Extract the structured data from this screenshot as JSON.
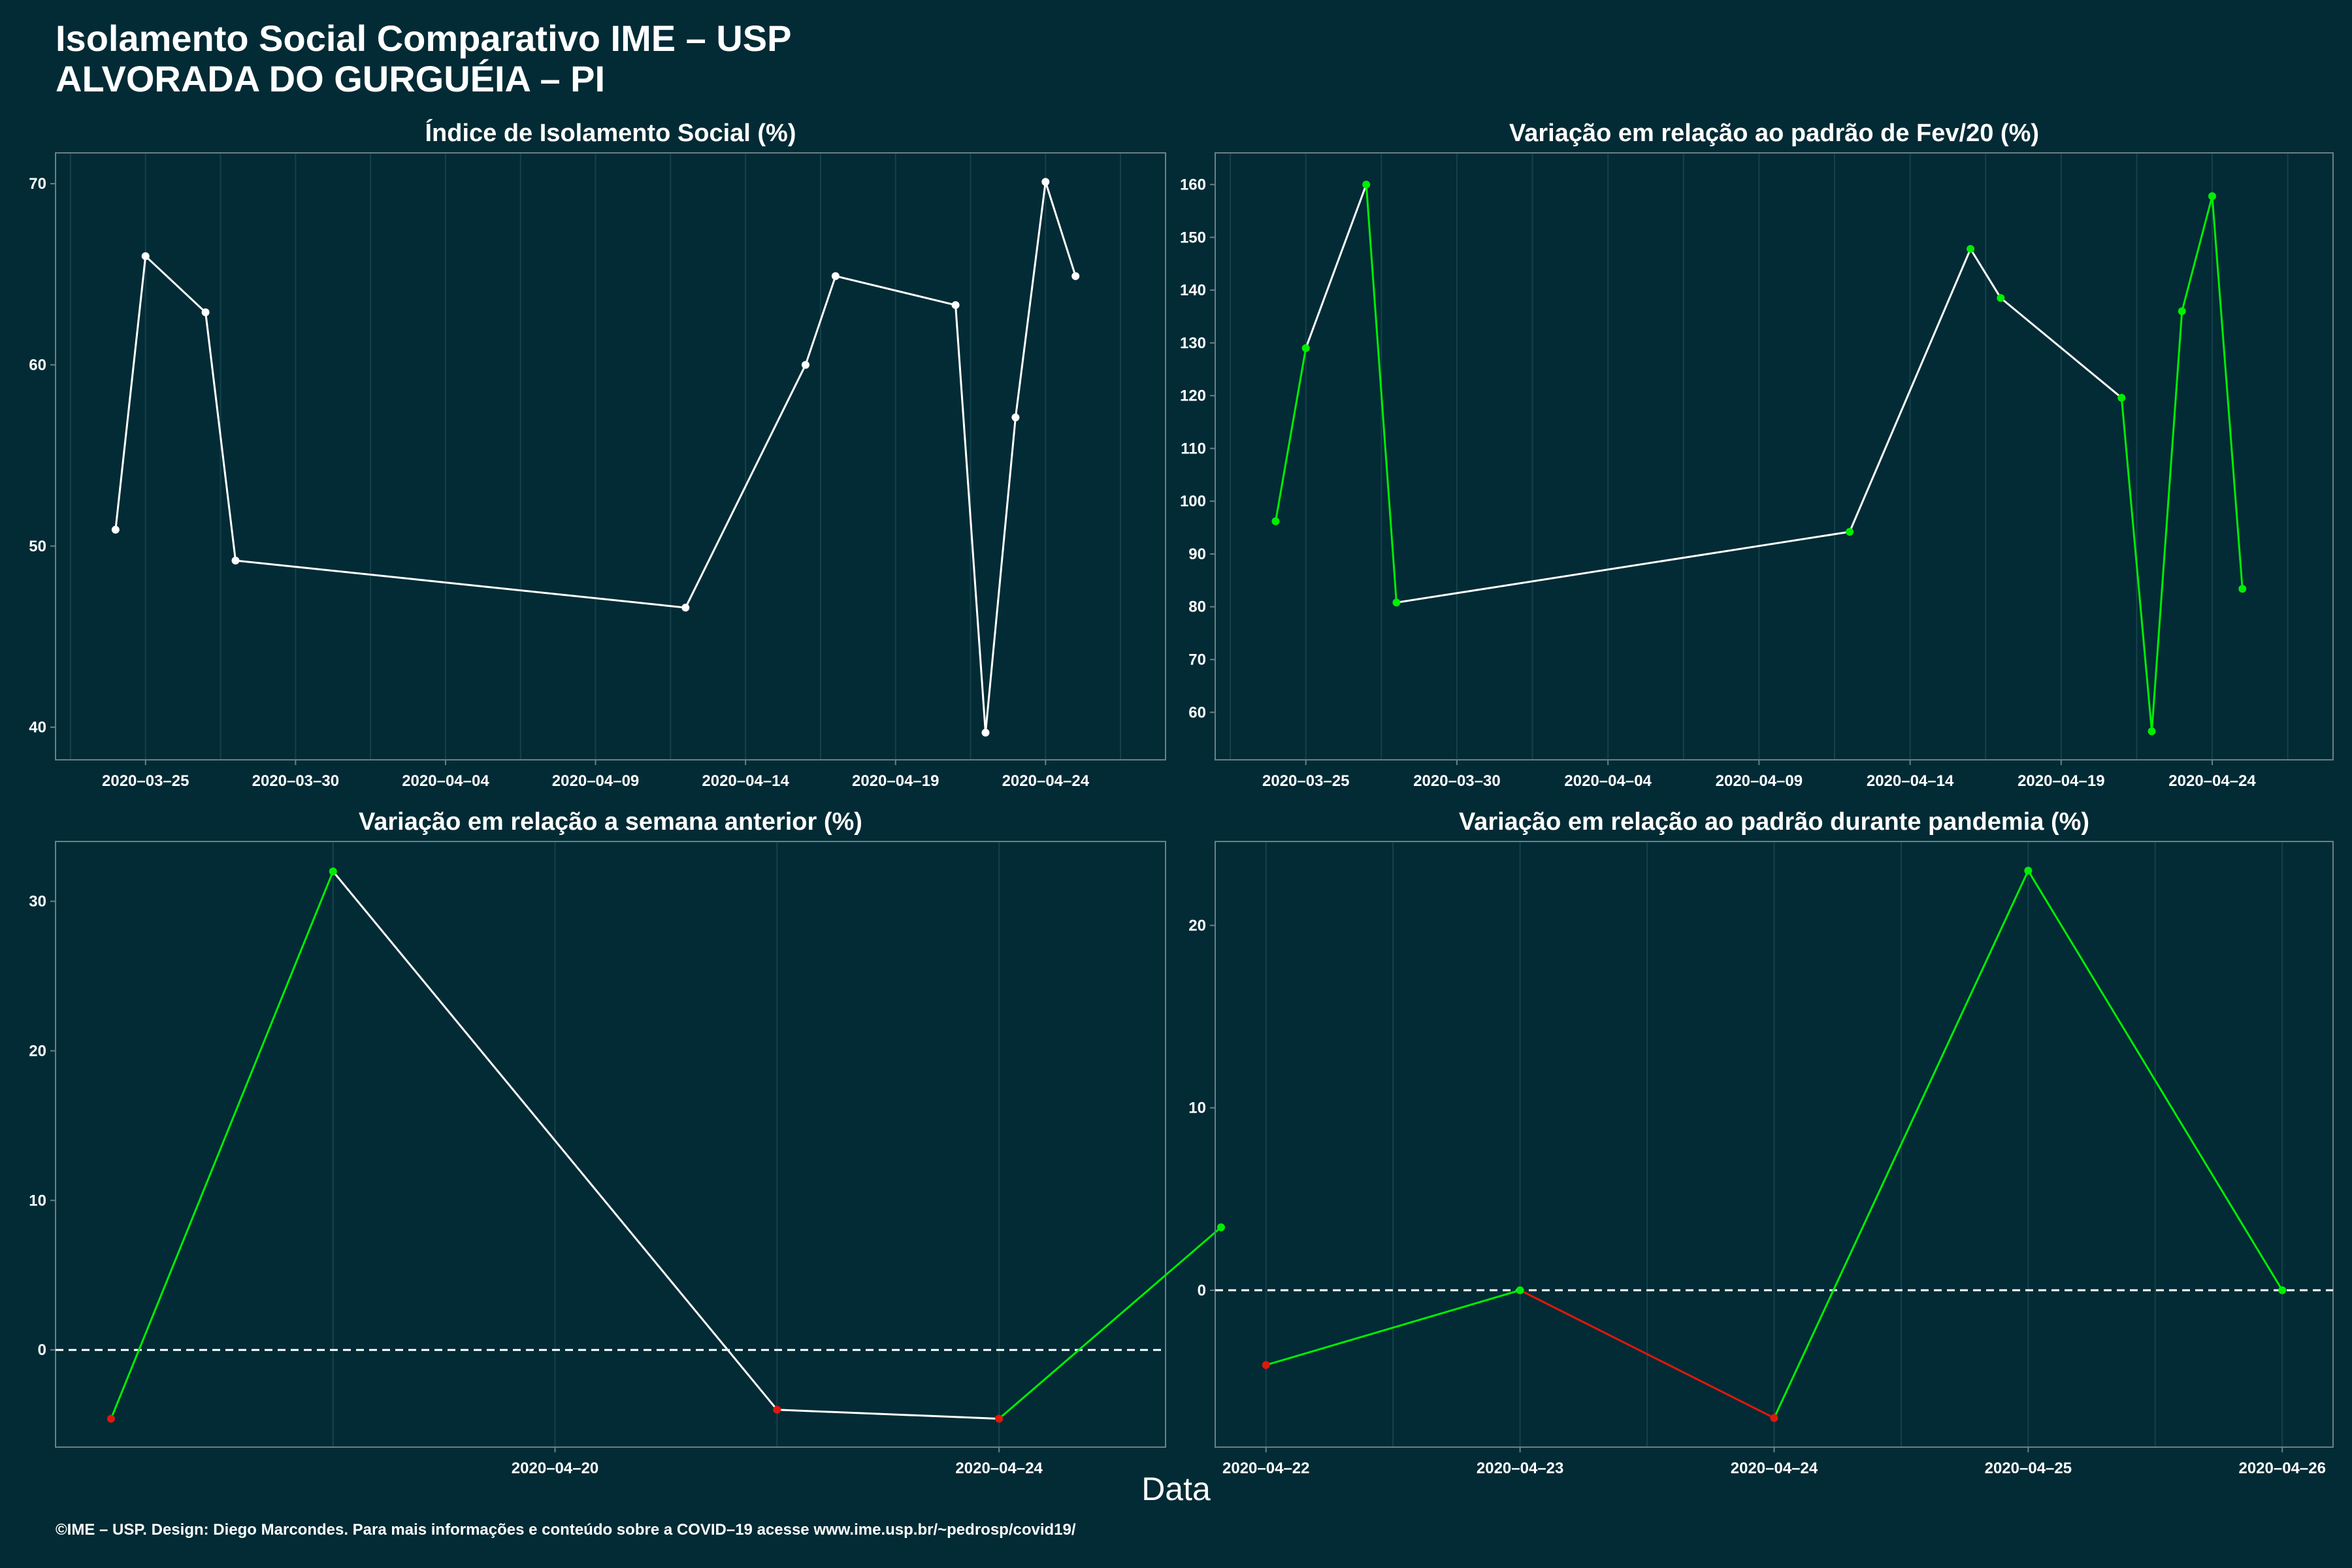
{
  "title_line1": "Isolamento Social Comparativo IME – USP",
  "title_line2": "ALVORADA DO GURGUÉIA – PI",
  "xlabel": "Data",
  "footer": "©IME – USP. Design: Diego Marcondes. Para mais informações e conteúdo sobre a COVID–19 acesse www.ime.usp.br/~pedrosp/covid19/",
  "colors": {
    "background": "#022b35",
    "line_default": "#ffffff",
    "increase": "#00ee00",
    "decrease": "#e0180c",
    "grid": "#16414b",
    "border": "#6a8088"
  },
  "chart_data": [
    {
      "type": "line",
      "title": "Índice de Isolamento Social (%)",
      "ylim": [
        38.2,
        71.7
      ],
      "yticks": [
        40,
        50,
        60,
        70
      ],
      "xlim": [
        "2020-03-22",
        "2020-04-28"
      ],
      "xticks": [
        "2020-03-25",
        "2020-03-30",
        "2020-04-04",
        "2020-04-09",
        "2020-04-14",
        "2020-04-19",
        "2020-04-24"
      ],
      "x": [
        "2020-03-24",
        "2020-03-25",
        "2020-03-27",
        "2020-03-28",
        "2020-04-12",
        "2020-04-16",
        "2020-04-17",
        "2020-04-21",
        "2020-04-22",
        "2020-04-23",
        "2020-04-24",
        "2020-04-25"
      ],
      "values": [
        50.9,
        66.0,
        62.9,
        49.2,
        46.6,
        60.0,
        64.9,
        63.3,
        39.7,
        57.1,
        70.1,
        64.9
      ],
      "colors": [
        "white",
        "white",
        "white",
        "white",
        "white",
        "white",
        "white",
        "white",
        "white",
        "white",
        "white",
        "white"
      ],
      "segments": [
        "white",
        "white",
        "white",
        "white",
        "white",
        "white",
        "white",
        "white",
        "white",
        "white",
        "white"
      ],
      "hline": null
    },
    {
      "type": "line",
      "title": "Variação em relação ao padrão de Fev/20 (%)",
      "ylim": [
        51,
        166
      ],
      "yticks": [
        60,
        70,
        80,
        90,
        100,
        110,
        120,
        130,
        140,
        150,
        160
      ],
      "xlim": [
        "2020-03-22",
        "2020-04-28"
      ],
      "xticks": [
        "2020-03-25",
        "2020-03-30",
        "2020-04-04",
        "2020-04-09",
        "2020-04-14",
        "2020-04-19",
        "2020-04-24"
      ],
      "x": [
        "2020-03-24",
        "2020-03-25",
        "2020-03-27",
        "2020-03-28",
        "2020-04-12",
        "2020-04-16",
        "2020-04-17",
        "2020-04-21",
        "2020-04-22",
        "2020-04-23",
        "2020-04-24",
        "2020-04-25"
      ],
      "values": [
        96.2,
        129.0,
        160.0,
        80.8,
        94.2,
        147.8,
        138.5,
        119.6,
        56.4,
        136.0,
        157.8,
        83.4
      ],
      "colors": [
        "green",
        "green",
        "green",
        "green",
        "green",
        "green",
        "green",
        "green",
        "green",
        "green",
        "green",
        "green"
      ],
      "segments": [
        "green",
        "white",
        "green",
        "white",
        "white",
        "white",
        "white",
        "green",
        "green",
        "green",
        "green"
      ],
      "hline": null
    },
    {
      "type": "line",
      "title": "Variação em relação a semana anterior (%)",
      "ylim": [
        -6.5,
        34
      ],
      "yticks": [
        0,
        10,
        20,
        30
      ],
      "xlim": [
        "2020-04-15.5",
        "2020-04-25.5"
      ],
      "xticks": [
        "2020-04-20",
        "2020-04-24"
      ],
      "x": [
        "2020-04-16",
        "2020-04-18",
        "2020-04-22",
        "2020-04-24",
        "2020-04-26"
      ],
      "values": [
        -4.6,
        32.0,
        -4.0,
        -4.6,
        8.2
      ],
      "colors": [
        "red",
        "green",
        "red",
        "red",
        "green"
      ],
      "segments": [
        "green",
        "white",
        "white",
        "green"
      ],
      "hline": 0
    },
    {
      "type": "line",
      "title": "Variação em relação ao padrão durante pandemia (%)",
      "ylim": [
        -8.6,
        24.6
      ],
      "yticks": [
        0,
        10,
        20
      ],
      "xlim": [
        "2020-04-21.8",
        "2020-04-26.2"
      ],
      "xticks": [
        "2020-04-22",
        "2020-04-23",
        "2020-04-24",
        "2020-04-25",
        "2020-04-26"
      ],
      "x": [
        "2020-04-22",
        "2020-04-23",
        "2020-04-24",
        "2020-04-25",
        "2020-04-26"
      ],
      "values": [
        -4.1,
        0.0,
        -7.0,
        23.0,
        0.0
      ],
      "colors": [
        "red",
        "green",
        "red",
        "green",
        "green"
      ],
      "segments": [
        "green",
        "red",
        "green",
        "green"
      ],
      "hline": 0
    }
  ]
}
